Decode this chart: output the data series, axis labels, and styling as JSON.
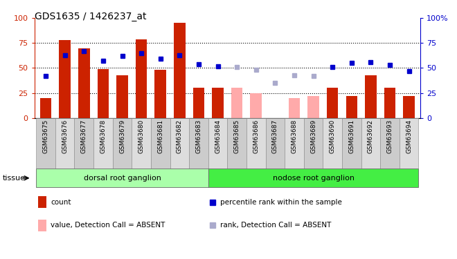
{
  "title": "GDS1635 / 1426237_at",
  "samples": [
    "GSM63675",
    "GSM63676",
    "GSM63677",
    "GSM63678",
    "GSM63679",
    "GSM63680",
    "GSM63681",
    "GSM63682",
    "GSM63683",
    "GSM63684",
    "GSM63685",
    "GSM63686",
    "GSM63687",
    "GSM63688",
    "GSM63689",
    "GSM63690",
    "GSM63691",
    "GSM63692",
    "GSM63693",
    "GSM63694"
  ],
  "bar_present": [
    20,
    78,
    70,
    49,
    43,
    79,
    48,
    95,
    30,
    30,
    null,
    null,
    null,
    null,
    null,
    30,
    22,
    43,
    30,
    22
  ],
  "bar_absent": [
    null,
    null,
    null,
    null,
    null,
    null,
    null,
    null,
    null,
    null,
    30,
    25,
    null,
    20,
    22,
    null,
    null,
    null,
    null,
    null
  ],
  "rank_present": [
    42,
    63,
    67,
    57,
    62,
    65,
    59,
    63,
    54,
    52,
    null,
    null,
    null,
    null,
    null,
    51,
    55,
    56,
    53,
    47
  ],
  "rank_absent": [
    null,
    null,
    null,
    null,
    null,
    null,
    null,
    null,
    null,
    null,
    51,
    48,
    35,
    43,
    42,
    null,
    null,
    null,
    null,
    null
  ],
  "bar_present_color": "#cc2200",
  "bar_absent_color": "#ffaaaa",
  "rank_present_color": "#0000cc",
  "rank_absent_color": "#aaaacc",
  "yticks": [
    0,
    25,
    50,
    75,
    100
  ],
  "ylim": [
    0,
    100
  ],
  "tissue_groups": [
    {
      "label": "dorsal root ganglion",
      "start": 0,
      "end": 8,
      "color": "#aaffaa"
    },
    {
      "label": "nodose root ganglion",
      "start": 9,
      "end": 19,
      "color": "#44ee44"
    }
  ],
  "legend": [
    {
      "label": "count",
      "color": "#cc2200",
      "kind": "rect"
    },
    {
      "label": "percentile rank within the sample",
      "color": "#0000cc",
      "kind": "square"
    },
    {
      "label": "value, Detection Call = ABSENT",
      "color": "#ffaaaa",
      "kind": "rect"
    },
    {
      "label": "rank, Detection Call = ABSENT",
      "color": "#aaaacc",
      "kind": "square"
    }
  ]
}
